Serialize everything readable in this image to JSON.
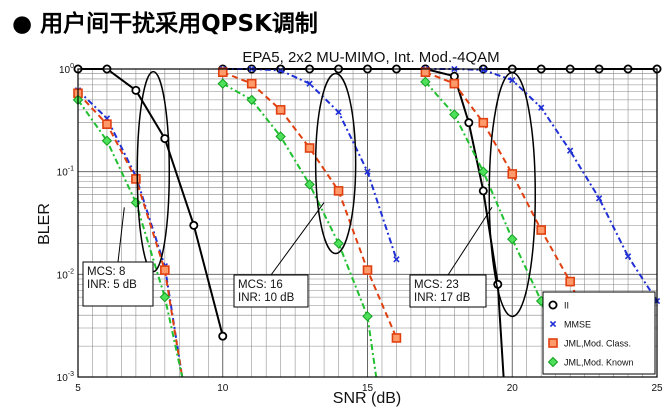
{
  "slide": {
    "bullet": "●",
    "title": "用户间干扰采用QPSK调制"
  },
  "chart_data": {
    "type": "line",
    "title": "EPA5, 2x2 MU-MIMO, Int. Mod.-4QAM",
    "xlabel": "SNR (dB)",
    "ylabel": "BLER",
    "xlim": [
      5,
      25
    ],
    "ylim": [
      0.001,
      1
    ],
    "yscale": "log",
    "grid": true,
    "legend_position": "bottom-right",
    "x_ticks": [
      "5",
      "10",
      "15",
      "20",
      "25"
    ],
    "y_ticks": [
      {
        "value": 1,
        "base": "10",
        "exp": "0"
      },
      {
        "value": 0.1,
        "base": "10",
        "exp": "-1"
      },
      {
        "value": 0.01,
        "base": "10",
        "exp": "-2"
      },
      {
        "value": 0.001,
        "base": "10",
        "exp": "-3"
      }
    ],
    "series": [
      {
        "name": "II",
        "color": "#000000",
        "marker": "circle",
        "dash": "",
        "groups": [
          [
            [
              5,
              1
            ],
            [
              6,
              1
            ],
            [
              7,
              0.62
            ],
            [
              8,
              0.21
            ],
            [
              9,
              0.03
            ],
            [
              10,
              0.0025
            ]
          ],
          [
            [
              10,
              1
            ],
            [
              11,
              1
            ],
            [
              12,
              1
            ],
            [
              13,
              1
            ],
            [
              14,
              1
            ],
            [
              15,
              1
            ],
            [
              16,
              1
            ],
            [
              17,
              1
            ]
          ],
          [
            [
              17,
              1
            ],
            [
              18,
              0.85
            ],
            [
              18.5,
              0.3
            ],
            [
              19,
              0.065
            ],
            [
              19.5,
              0.008
            ],
            [
              19.7,
              0.001
            ]
          ],
          [
            [
              19,
              1
            ],
            [
              20,
              1
            ],
            [
              21,
              1
            ],
            [
              22,
              1
            ],
            [
              23,
              1
            ],
            [
              24,
              1
            ],
            [
              25,
              1
            ]
          ]
        ]
      },
      {
        "name": "MMSE",
        "color": "#1f2fd6",
        "marker": "x",
        "dash": "6 3 2 3",
        "groups": [
          [
            [
              5,
              0.62
            ],
            [
              6,
              0.33
            ],
            [
              7,
              0.09
            ],
            [
              8,
              0.012
            ],
            [
              8.6,
              0.001
            ]
          ],
          [
            [
              10,
              1
            ],
            [
              11,
              1
            ],
            [
              12,
              0.97
            ],
            [
              13,
              0.72
            ],
            [
              14,
              0.38
            ],
            [
              15,
              0.1
            ],
            [
              16,
              0.014
            ]
          ],
          [
            [
              17,
              1
            ],
            [
              18,
              1
            ],
            [
              19,
              0.98
            ],
            [
              20,
              0.78
            ],
            [
              21,
              0.42
            ],
            [
              22,
              0.16
            ],
            [
              23,
              0.055
            ],
            [
              24,
              0.015
            ],
            [
              25,
              0.0055
            ]
          ]
        ]
      },
      {
        "name": "JML,Mod. Class.",
        "color": "#e04010",
        "marker": "square",
        "dash": "6 4",
        "groups": [
          [
            [
              5,
              0.58
            ],
            [
              6,
              0.29
            ],
            [
              7,
              0.085
            ],
            [
              8,
              0.011
            ],
            [
              8.6,
              0.001
            ]
          ],
          [
            [
              10,
              0.93
            ],
            [
              11,
              0.72
            ],
            [
              12,
              0.4
            ],
            [
              13,
              0.17
            ],
            [
              14,
              0.065
            ],
            [
              15,
              0.011
            ],
            [
              16,
              0.0024
            ]
          ],
          [
            [
              17,
              0.93
            ],
            [
              18,
              0.72
            ],
            [
              19,
              0.3
            ],
            [
              20,
              0.095
            ],
            [
              21,
              0.027
            ],
            [
              22,
              0.0085
            ],
            [
              22.5,
              0.004
            ]
          ]
        ]
      },
      {
        "name": "JML,Mod. Known",
        "color": "#20c030",
        "marker": "diamond",
        "dash": "6 3 2 3",
        "groups": [
          [
            [
              5,
              0.5
            ],
            [
              6,
              0.2
            ],
            [
              7,
              0.05
            ],
            [
              8,
              0.006
            ],
            [
              8.6,
              0.001
            ]
          ],
          [
            [
              10,
              0.72
            ],
            [
              11,
              0.5
            ],
            [
              12,
              0.22
            ],
            [
              13,
              0.075
            ],
            [
              14,
              0.02
            ],
            [
              15,
              0.0039
            ],
            [
              15.3,
              0.001
            ]
          ],
          [
            [
              17,
              0.75
            ],
            [
              18,
              0.36
            ],
            [
              19,
              0.1
            ],
            [
              20,
              0.022
            ],
            [
              21,
              0.0055
            ],
            [
              21.5,
              0.002
            ]
          ]
        ]
      }
    ],
    "annotations": [
      {
        "label_lines": [
          "MCS: 8",
          "INR: 5 dB"
        ]
      },
      {
        "label_lines": [
          "MCS: 16",
          "INR: 10 dB"
        ]
      },
      {
        "label_lines": [
          "MCS: 23",
          "INR: 17 dB"
        ]
      }
    ]
  }
}
